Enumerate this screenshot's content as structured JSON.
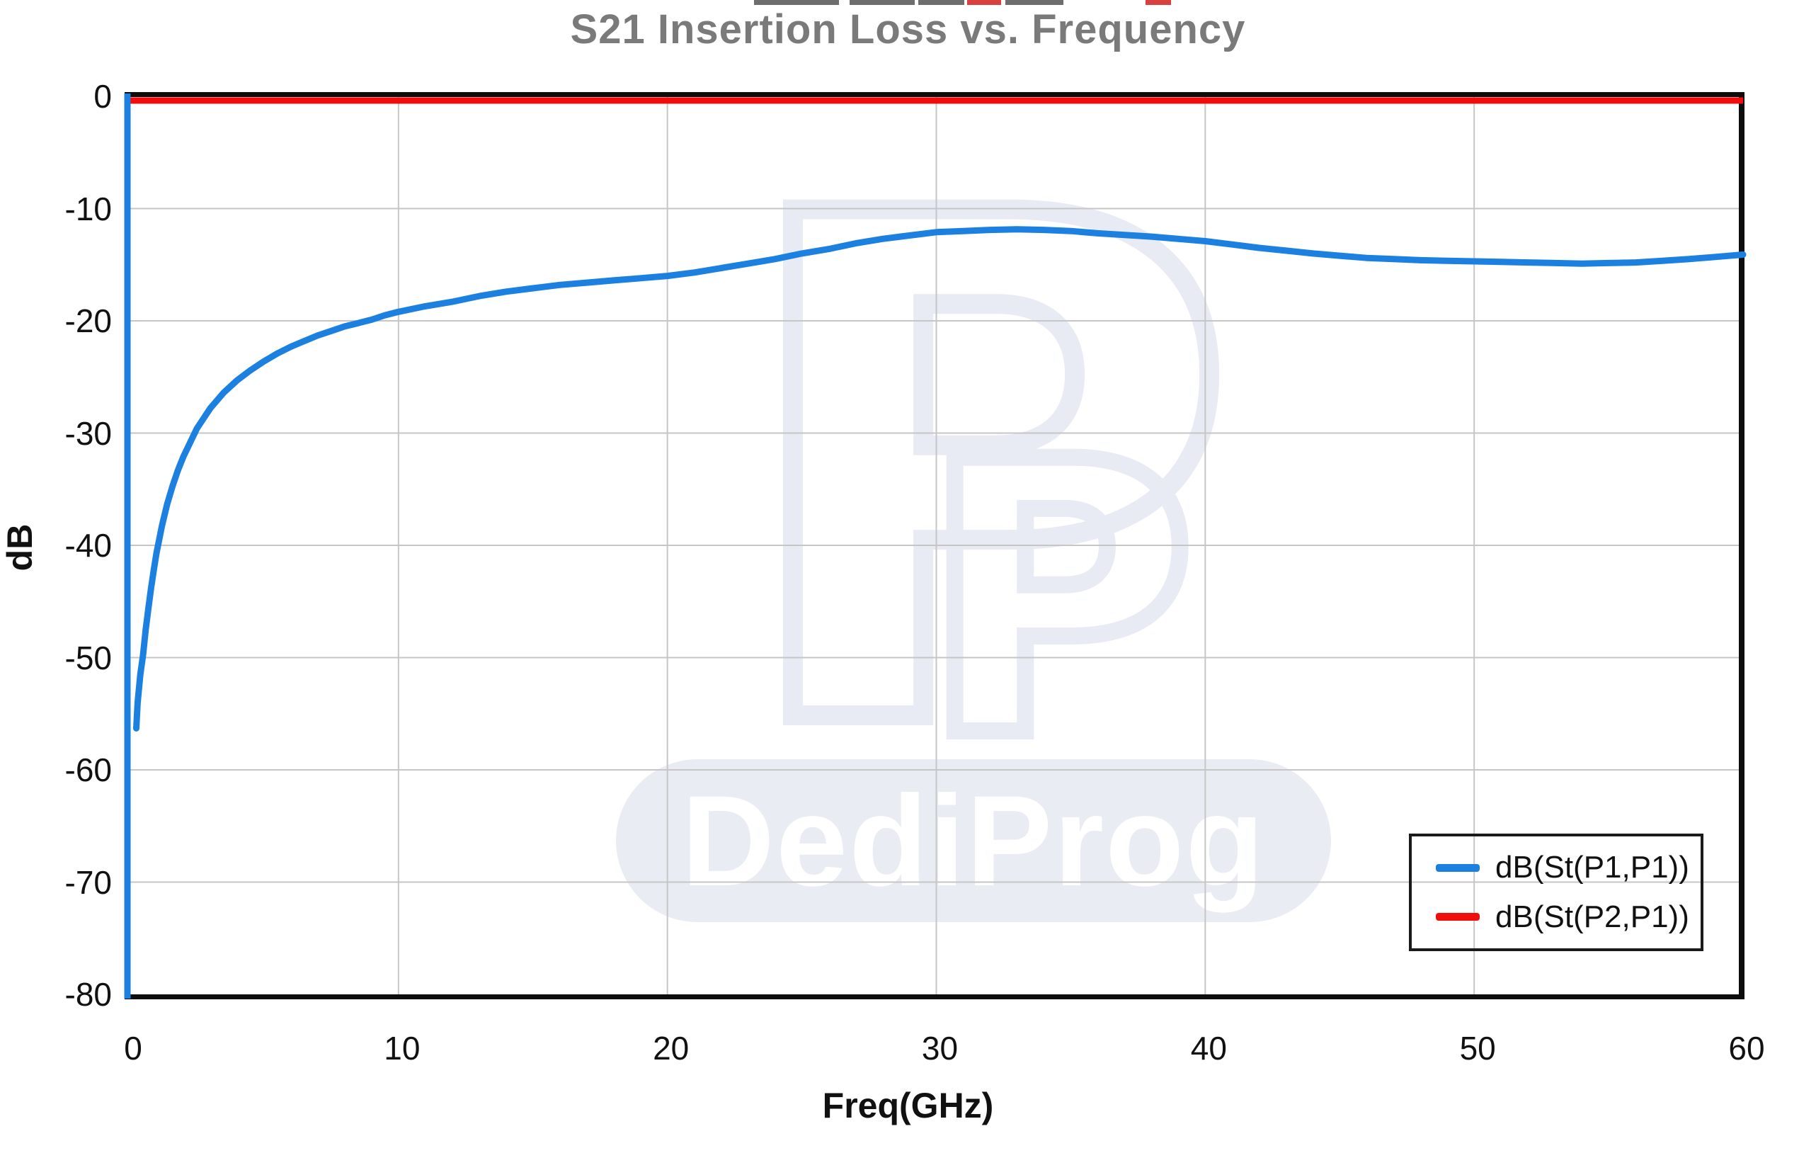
{
  "chart": {
    "title": "S21 Insertion Loss vs. Frequency",
    "xlabel": "Freq(GHz)",
    "ylabel": "dB"
  },
  "legend": {
    "items": [
      {
        "label": "dB(St(P1,P1))",
        "color": "#1b80e0"
      },
      {
        "label": "dB(St(P2,P1))",
        "color": "#f20d0d"
      }
    ]
  },
  "watermark": {
    "pill_text": "DediProg",
    "logo_letter": "P"
  },
  "colors": {
    "blue_trace": "#1b80e0",
    "red_trace": "#f20d0d",
    "grid": "#c6c6c6",
    "spine": "#0d0d0d",
    "title_gray": "#7a7a7a",
    "watermark": "#e8ebf4"
  },
  "chart_data": {
    "type": "line",
    "title": "S21 Insertion Loss vs. Frequency",
    "xlabel": "Freq(GHz)",
    "ylabel": "dB",
    "xlim": [
      0,
      60
    ],
    "ylim": [
      -80,
      0
    ],
    "x_ticks": [
      0,
      10,
      20,
      30,
      40,
      50,
      60
    ],
    "y_ticks": [
      0,
      -10,
      -20,
      -30,
      -40,
      -50,
      -60,
      -70,
      -80
    ],
    "grid": true,
    "legend_position": "lower right",
    "series": [
      {
        "name": "dB(St(P1,P1))",
        "color": "#1b80e0",
        "leading_vertical": {
          "x": 0,
          "y_from": 0,
          "y_to": -80
        },
        "points": [
          [
            0.25,
            -56.3
          ],
          [
            0.3,
            -54.0
          ],
          [
            0.4,
            -51.5
          ],
          [
            0.5,
            -49.8
          ],
          [
            0.6,
            -47.5
          ],
          [
            0.7,
            -45.6
          ],
          [
            0.8,
            -43.8
          ],
          [
            0.9,
            -42.2
          ],
          [
            1.0,
            -40.7
          ],
          [
            1.2,
            -38.3
          ],
          [
            1.4,
            -36.3
          ],
          [
            1.6,
            -34.7
          ],
          [
            1.8,
            -33.3
          ],
          [
            2.0,
            -32.1
          ],
          [
            2.5,
            -29.6
          ],
          [
            3.0,
            -27.8
          ],
          [
            3.5,
            -26.4
          ],
          [
            4.0,
            -25.3
          ],
          [
            4.5,
            -24.4
          ],
          [
            5.0,
            -23.6
          ],
          [
            5.5,
            -22.9
          ],
          [
            6.0,
            -22.3
          ],
          [
            6.5,
            -21.8
          ],
          [
            7.0,
            -21.3
          ],
          [
            7.5,
            -20.9
          ],
          [
            8.0,
            -20.5
          ],
          [
            8.5,
            -20.2
          ],
          [
            9.0,
            -19.9
          ],
          [
            9.5,
            -19.5
          ],
          [
            10,
            -19.2
          ],
          [
            11,
            -18.7
          ],
          [
            12,
            -18.3
          ],
          [
            13,
            -17.8
          ],
          [
            14,
            -17.4
          ],
          [
            15,
            -17.1
          ],
          [
            16,
            -16.8
          ],
          [
            17,
            -16.6
          ],
          [
            18,
            -16.4
          ],
          [
            19,
            -16.2
          ],
          [
            20,
            -16.0
          ],
          [
            21,
            -15.7
          ],
          [
            22,
            -15.3
          ],
          [
            23,
            -14.9
          ],
          [
            24,
            -14.5
          ],
          [
            25,
            -14.0
          ],
          [
            26,
            -13.6
          ],
          [
            27,
            -13.1
          ],
          [
            28,
            -12.7
          ],
          [
            29,
            -12.4
          ],
          [
            30,
            -12.1
          ],
          [
            31,
            -12.0
          ],
          [
            32,
            -11.9
          ],
          [
            33,
            -11.85
          ],
          [
            34,
            -11.9
          ],
          [
            35,
            -12.0
          ],
          [
            36,
            -12.2
          ],
          [
            37,
            -12.35
          ],
          [
            38,
            -12.5
          ],
          [
            39,
            -12.7
          ],
          [
            40,
            -12.9
          ],
          [
            41,
            -13.2
          ],
          [
            42,
            -13.5
          ],
          [
            43,
            -13.75
          ],
          [
            44,
            -14.0
          ],
          [
            45,
            -14.2
          ],
          [
            46,
            -14.4
          ],
          [
            47,
            -14.5
          ],
          [
            48,
            -14.6
          ],
          [
            49,
            -14.65
          ],
          [
            50,
            -14.7
          ],
          [
            51,
            -14.75
          ],
          [
            52,
            -14.8
          ],
          [
            53,
            -14.85
          ],
          [
            54,
            -14.9
          ],
          [
            55,
            -14.85
          ],
          [
            56,
            -14.8
          ],
          [
            57,
            -14.65
          ],
          [
            58,
            -14.5
          ],
          [
            59,
            -14.3
          ],
          [
            60,
            -14.1
          ]
        ]
      },
      {
        "name": "dB(St(P2,P1))",
        "color": "#f20d0d",
        "points": [
          [
            0,
            0
          ],
          [
            60,
            0
          ]
        ]
      }
    ]
  }
}
